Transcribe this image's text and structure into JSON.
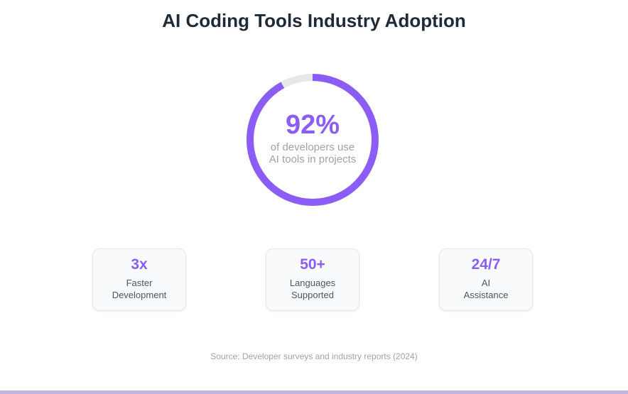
{
  "title": "AI Coding Tools Industry Adoption",
  "colors": {
    "accent": "#8b5cf6",
    "track": "#e5e7eb",
    "title": "#1f2937",
    "muted": "#9ca3af"
  },
  "chart_data": {
    "type": "pie",
    "value": 92,
    "max": 100,
    "percent_label": "92%",
    "caption_line1": "of developers use",
    "caption_line2": "AI tools in projects"
  },
  "stats": [
    {
      "value": "3x",
      "label_line1": "Faster",
      "label_line2": "Development"
    },
    {
      "value": "50+",
      "label_line1": "Languages",
      "label_line2": "Supported"
    },
    {
      "value": "24/7",
      "label_line1": "AI",
      "label_line2": "Assistance"
    }
  ],
  "source": "Source: Developer surveys and industry reports (2024)"
}
